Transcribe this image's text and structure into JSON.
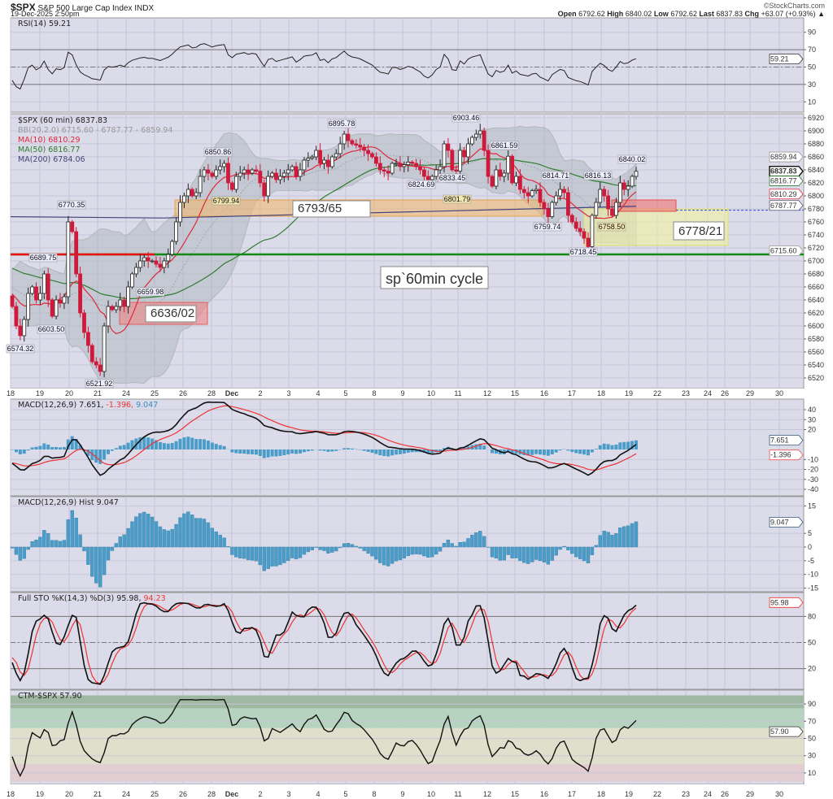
{
  "header": {
    "symbol": "$SPX",
    "name": "S&P 500 Large Cap Index",
    "exchange": "INDX",
    "datetime": "19-Dec-2025 2:50pm",
    "brand": "©StockCharts.com",
    "open_label": "Open",
    "open": "6792.62",
    "high_label": "High",
    "high": "6840.02",
    "low_label": "Low",
    "low": "6792.62",
    "last_label": "Last",
    "last": "6837.83",
    "chg_label": "Chg",
    "chg": "+63.07 (+0.93%)",
    "chg_icon": "triangle-up"
  },
  "panels": {
    "rsi": {
      "title": "RSI(14) 59.21",
      "readout": "59.21",
      "ticks": [
        "90",
        "70",
        "50",
        "30",
        "10"
      ]
    },
    "price": {
      "title": "$SPX (60 min) 6837.83",
      "bb": "BB(20,2.0) 6715.60 - 6787.77 - 6859.94",
      "ma10": "MA(10) 6810.29",
      "ma50": "MA(50) 6816.77",
      "ma200": "MA(200) 6784.06",
      "ticks": [
        "6920",
        "6900",
        "6880",
        "6860",
        "6840",
        "6820",
        "6800",
        "6780",
        "6760",
        "6740",
        "6720",
        "6700",
        "6680",
        "6660",
        "6640",
        "6620",
        "6600",
        "6580",
        "6560",
        "6540",
        "6520"
      ],
      "readouts": {
        "bb_upper": "6859.94",
        "last": "6837.83",
        "ma50": "6816.77",
        "ma10": "6810.29",
        "bb_mid": "6787.77",
        "bb_lower": "6715.60"
      }
    },
    "macd": {
      "title_main": "MACD(12,26,9) 7.651, ",
      "title_signal": "-1.396, ",
      "title_hist": "9.047",
      "readout_macd": "7.651",
      "readout_signal": "-1.396",
      "ticks": [
        "40",
        "30",
        "20",
        "-10",
        "-20",
        "-30",
        "-40"
      ]
    },
    "hist": {
      "title": "MACD(12,26,9) Hist 9.047",
      "readout": "9.047",
      "ticks": [
        "15",
        "5",
        "0",
        "-5",
        "-10",
        "-15"
      ]
    },
    "sto": {
      "title_main": "Full STO %K(14,3) %D(3) 95.98, ",
      "title_d": "94.23",
      "readout": "95.98",
      "ticks": [
        "80",
        "50",
        "20"
      ]
    },
    "ctm": {
      "title": "CTM-$SPX 57.90",
      "readout": "57.90",
      "ticks": [
        "90",
        "70",
        "50",
        "30",
        "10"
      ]
    }
  },
  "x_axis": {
    "labels": [
      "18",
      "19",
      "20",
      "21",
      "24",
      "25",
      "26",
      "28",
      "Dec",
      "2",
      "3",
      "4",
      "5",
      "8",
      "9",
      "10",
      "11",
      "12",
      "15",
      "16",
      "17",
      "18",
      "19",
      "22",
      "23",
      "24",
      "26",
      "29",
      "30"
    ]
  },
  "annotations": {
    "price_labels": [
      "6770.35",
      "6689.75",
      "6603.50",
      "6574.32",
      "6521.92",
      "6659.98",
      "6799.94",
      "6850.86",
      "6895.78",
      "6903.46",
      "6861.59",
      "6824.69",
      "6833.45",
      "6814.71",
      "6816.13",
      "6840.02",
      "6801.79",
      "6759.74",
      "6758.50",
      "6718.45"
    ],
    "zone_upper": "6793/65",
    "zone_lower": "6636/02",
    "zone_right": "6778/21",
    "note": "sp`60min cycle",
    "support_level": 6710,
    "dotted_level": 6778
  },
  "colors": {
    "background": "#dcdbe9",
    "up": "#ffffff",
    "down": "#d0193b",
    "ma10": "#e0283c",
    "ma50": "#2e7d2e",
    "ma200": "#44447a",
    "macd_hist": "#4a9cc9",
    "support": "#108a10",
    "support_left": "#ee1111"
  },
  "chart_data": {
    "type": "candlestick",
    "interval": "60 min",
    "x_range": [
      "18 Nov",
      "19 Dec"
    ],
    "y_range": [
      6510,
      6925
    ],
    "closes": [
      6630,
      6600,
      6585,
      6610,
      6650,
      6660,
      6640,
      6650,
      6680,
      6640,
      6615,
      6640,
      6635,
      6645,
      6760,
      6745,
      6680,
      6620,
      6590,
      6570,
      6545,
      6540,
      6530,
      6600,
      6630,
      6625,
      6630,
      6640,
      6630,
      6660,
      6680,
      6690,
      6700,
      6705,
      6700,
      6700,
      6695,
      6690,
      6700,
      6710,
      6730,
      6760,
      6790,
      6800,
      6810,
      6800,
      6805,
      6830,
      6840,
      6835,
      6830,
      6840,
      6845,
      6850,
      6820,
      6810,
      6830,
      6835,
      6840,
      6835,
      6840,
      6838,
      6820,
      6800,
      6830,
      6835,
      6825,
      6830,
      6835,
      6840,
      6845,
      6830,
      6840,
      6855,
      6858,
      6860,
      6870,
      6850,
      6855,
      6845,
      6860,
      6865,
      6880,
      6895,
      6885,
      6880,
      6878,
      6875,
      6870,
      6865,
      6860,
      6850,
      6840,
      6838,
      6835,
      6850,
      6850,
      6845,
      6848,
      6852,
      6850,
      6845,
      6840,
      6830,
      6825,
      6830,
      6840,
      6845,
      6880,
      6870,
      6840,
      6838,
      6870,
      6860,
      6880,
      6890,
      6895,
      6900,
      6870,
      6830,
      6815,
      6840,
      6830,
      6835,
      6861,
      6820,
      6830,
      6810,
      6805,
      6800,
      6808,
      6810,
      6790,
      6780,
      6768,
      6790,
      6800,
      6810,
      6805,
      6770,
      6760,
      6750,
      6745,
      6735,
      6722,
      6770,
      6790,
      6810,
      6800,
      6780,
      6770,
      6790,
      6820,
      6810,
      6815,
      6830,
      6837.83
    ],
    "ma200": [
      6768,
      6784.06
    ]
  }
}
